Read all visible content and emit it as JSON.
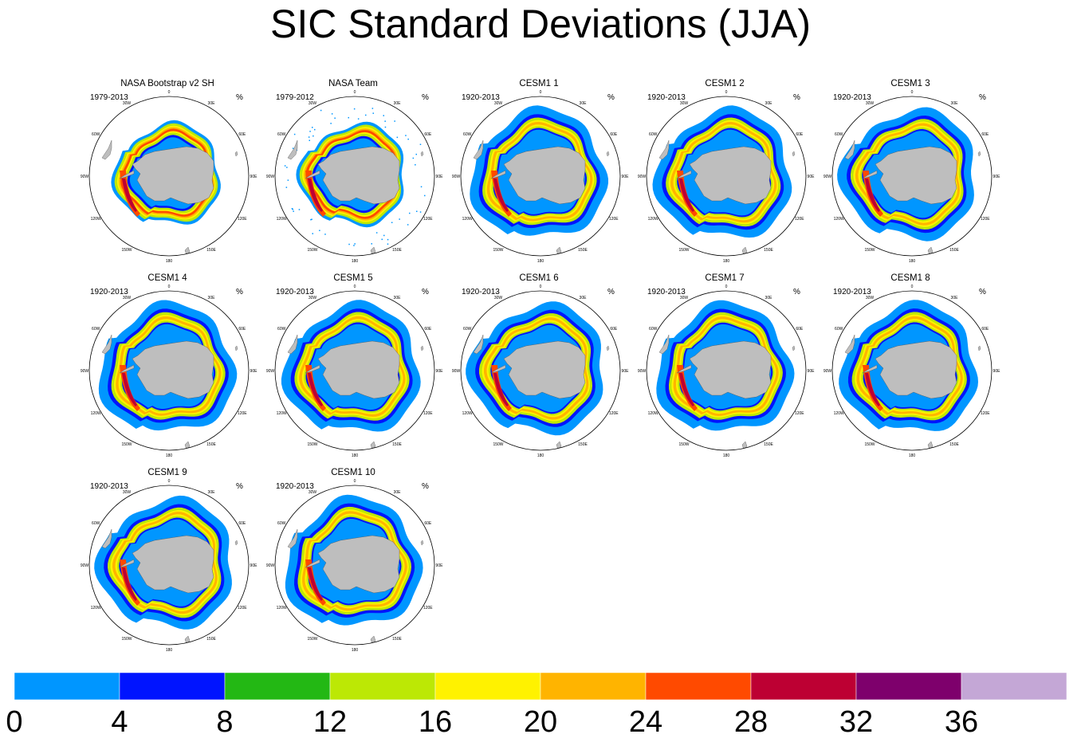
{
  "title": "SIC Standard Deviations (JJA)",
  "units_label": "%",
  "longitude_labels": [
    "0",
    "30E",
    "60E",
    "90E",
    "120E",
    "150E",
    "180",
    "150W",
    "120W",
    "90W",
    "60W",
    "30W"
  ],
  "panels": [
    {
      "title": "NASA Bootstrap v2 SH",
      "period": "1979-2013",
      "style": "bootstrap"
    },
    {
      "title": "NASA Team",
      "period": "1979-2012",
      "style": "team"
    },
    {
      "title": "CESM1 1",
      "period": "1920-2013",
      "style": "model"
    },
    {
      "title": "CESM1 2",
      "period": "1920-2013",
      "style": "model"
    },
    {
      "title": "CESM1 3",
      "period": "1920-2013",
      "style": "model"
    },
    {
      "title": "CESM1 4",
      "period": "1920-2013",
      "style": "model"
    },
    {
      "title": "CESM1 5",
      "period": "1920-2013",
      "style": "model"
    },
    {
      "title": "CESM1 6",
      "period": "1920-2013",
      "style": "model"
    },
    {
      "title": "CESM1 7",
      "period": "1920-2013",
      "style": "model"
    },
    {
      "title": "CESM1 8",
      "period": "1920-2013",
      "style": "model"
    },
    {
      "title": "CESM1 9",
      "period": "1920-2013",
      "style": "model"
    },
    {
      "title": "CESM1 10",
      "period": "1920-2013",
      "style": "model"
    }
  ],
  "colors": {
    "land": "#bebebe",
    "ocean_stroke": "#000000"
  },
  "chart_data": {
    "type": "heatmap",
    "title": "SIC Standard Deviations (JJA)",
    "units": "%",
    "projection": "south polar stereographic",
    "colorbar": {
      "ticks": [
        "0",
        "4",
        "8",
        "12",
        "16",
        "20",
        "24",
        "28",
        "32",
        "36"
      ],
      "bins": [
        {
          "min": 0,
          "max": 4,
          "color": "#0096ff"
        },
        {
          "min": 4,
          "max": 8,
          "color": "#0014ff"
        },
        {
          "min": 8,
          "max": 12,
          "color": "#23b814"
        },
        {
          "min": 12,
          "max": 16,
          "color": "#bce805"
        },
        {
          "min": 16,
          "max": 20,
          "color": "#fff200"
        },
        {
          "min": 20,
          "max": 24,
          "color": "#ffb400"
        },
        {
          "min": 24,
          "max": 28,
          "color": "#ff4a00"
        },
        {
          "min": 28,
          "max": 32,
          "color": "#bd0033"
        },
        {
          "min": 32,
          "max": 36,
          "color": "#7e006c"
        },
        {
          "min": 36,
          "max": null,
          "color": "#c4a7d6"
        }
      ]
    }
  }
}
